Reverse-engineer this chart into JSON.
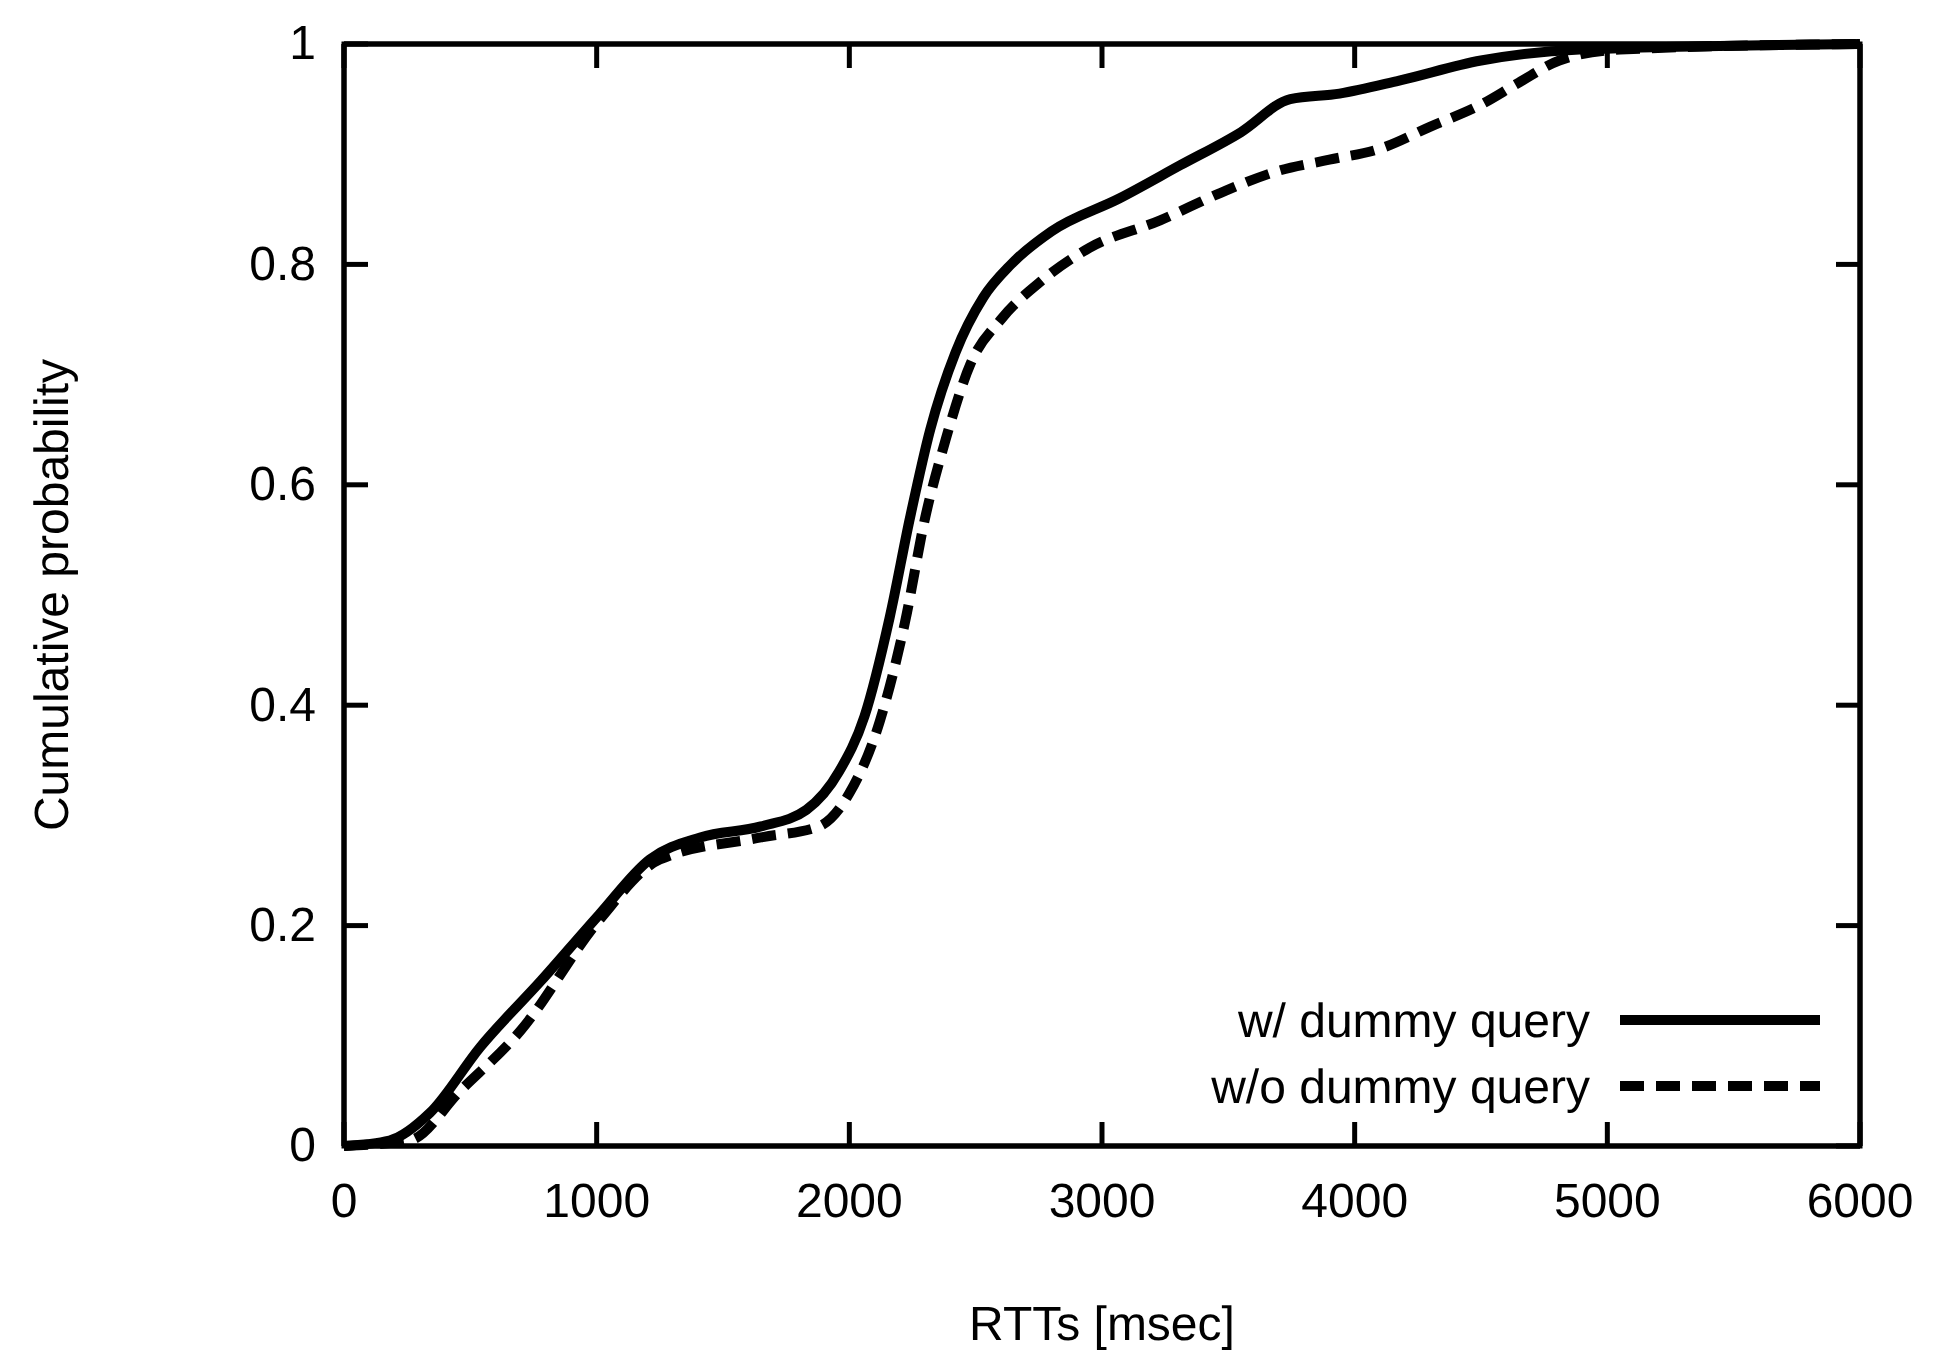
{
  "chart_data": {
    "type": "line",
    "xlabel": "RTTs [msec]",
    "ylabel": "Cumulative probability",
    "xlim": [
      0,
      6000
    ],
    "ylim": [
      0,
      1
    ],
    "xticks": [
      0,
      1000,
      2000,
      3000,
      4000,
      5000,
      6000
    ],
    "yticks": [
      0,
      0.2,
      0.4,
      0.6,
      0.8,
      1
    ],
    "grid": false,
    "legend": "bottom right",
    "marker": "none",
    "series": [
      {
        "name": "w/ dummy query",
        "color": "#000000",
        "line_style": "solid",
        "x": [
          0,
          180,
          340,
          540,
          780,
          1010,
          1210,
          1410,
          1650,
          1830,
          1960,
          2060,
          2160,
          2240,
          2320,
          2420,
          2530,
          2640,
          2800,
          3070,
          3310,
          3550,
          3745,
          3940,
          4180,
          4500,
          4890,
          6000
        ],
        "values": [
          0,
          0.005,
          0.03,
          0.09,
          0.15,
          0.21,
          0.26,
          0.28,
          0.29,
          0.305,
          0.34,
          0.39,
          0.48,
          0.57,
          0.65,
          0.72,
          0.77,
          0.8,
          0.83,
          0.86,
          0.89,
          0.92,
          0.95,
          0.955,
          0.967,
          0.985,
          0.995,
          1
        ]
      },
      {
        "name": "w/o dummy query",
        "color": "#000000",
        "line_style": "dashed",
        "x": [
          0,
          260,
          460,
          700,
          1010,
          1250,
          1650,
          1880,
          2000,
          2120,
          2220,
          2300,
          2380,
          2480,
          2600,
          2760,
          2950,
          3230,
          3470,
          3700,
          3900,
          4100,
          4300,
          4500,
          4650,
          4810,
          5050,
          6000
        ],
        "values": [
          0,
          0.005,
          0.05,
          0.105,
          0.205,
          0.26,
          0.28,
          0.29,
          0.32,
          0.385,
          0.475,
          0.57,
          0.64,
          0.71,
          0.75,
          0.785,
          0.815,
          0.84,
          0.865,
          0.885,
          0.895,
          0.905,
          0.925,
          0.945,
          0.965,
          0.985,
          0.995,
          1
        ]
      }
    ]
  }
}
